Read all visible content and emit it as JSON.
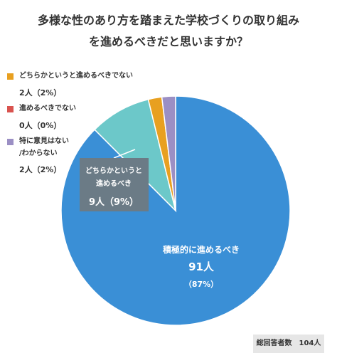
{
  "header": {
    "title_line1": "多様な性のあり方を踏まえた学校づくりの取り組み",
    "title_line2": "を進めるべきだと思いますか？"
  },
  "legend": [
    {
      "label": "どちらかというと進めるべきでない",
      "count": "2人（2%）",
      "color": "#E8A020"
    },
    {
      "label": "進めるべきでない",
      "count": "0人（0%）",
      "color": "#D9534F"
    },
    {
      "label_line1": "特に意見はない",
      "label_line2": "/わからない",
      "count": "2人（2%）",
      "color": "#9B8FC4"
    }
  ],
  "footer": {
    "respondents": "総回答者数　104人"
  },
  "chart_data": {
    "type": "pie",
    "title": "多様な性のあり方を踏まえた学校づくりの取り組みを進めるべきだと思いますか？",
    "total_respondents": 104,
    "slices": [
      {
        "name": "積極的に進めるべき",
        "count": 91,
        "percent": 87,
        "count_label": "91人",
        "percent_label": "（87%）",
        "color": "#3A8FD6"
      },
      {
        "name": "どちらかというと進めるべき",
        "count": 9,
        "percent": 9,
        "count_label": "9人",
        "percent_label": "（9%）",
        "color": "#6CC8C9"
      },
      {
        "name": "どちらかというと進めるべきでない",
        "count": 2,
        "percent": 2,
        "color": "#E8A020"
      },
      {
        "name": "進めるべきでない",
        "count": 0,
        "percent": 0,
        "color": "#D9534F"
      },
      {
        "name": "特に意見はない/わからない",
        "count": 2,
        "percent": 2,
        "color": "#9B8FC4"
      }
    ],
    "callouts": {
      "slice0": {
        "line1": "積極的に進めるべき",
        "line2": "91人",
        "line3": "（87%）"
      },
      "slice1": {
        "line1": "どちらかというと",
        "line2": "進めるべき",
        "line3": "9人（9%）"
      }
    }
  }
}
